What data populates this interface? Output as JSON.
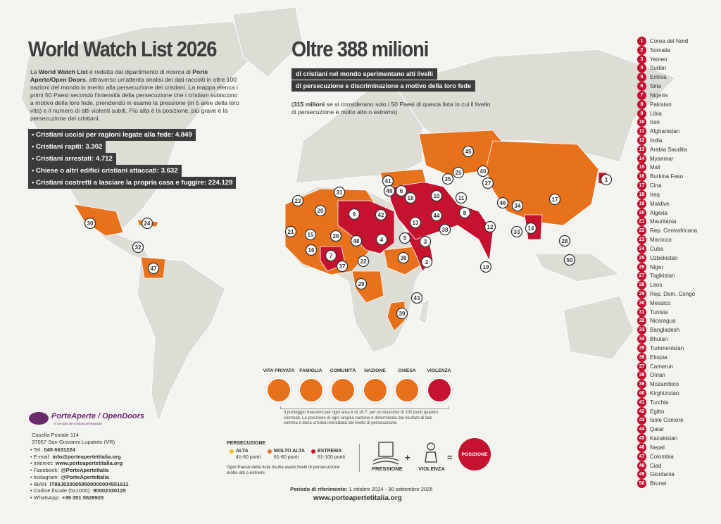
{
  "header": {
    "title": "World Watch List 2026",
    "headline": "Oltre 388 milioni",
    "sub_lines": [
      "di cristiani nel mondo sperimentano alti livelli",
      "di persecuzione e discriminazione a motivo della loro fede"
    ],
    "note": [
      "(",
      "315 milioni",
      " se si considerano solo i 50 Paesi di questa lista in cui il livello di persecuzione è molto alto o estremo)"
    ]
  },
  "intro": [
    "La ",
    "World Watch List",
    " è redatta dal dipartimento di ricerca di ",
    "Porte Aperte/Open Doors",
    ", attraverso un'attenta analisi dei dati raccolti in oltre 100 nazioni del mondo in merito alla persecuzione dei cristiani. La mappa elenca i primi 50 Paesi secondo l'intensità della persecuzione che i cristiani subiscono a motivo della loro fede, prendendo in esame la pressione (in 5 aree della loro vita) e il numero di atti violenti subiti. Più alta è la posizione, più grave è la persecuzione dei cristiani."
  ],
  "stats": [
    {
      "label": "Cristiani uccisi per ragioni legate alla fede:",
      "value": "4.849"
    },
    {
      "label": "Cristiani rapiti:",
      "value": "3.302"
    },
    {
      "label": "Cristiani arrestati:",
      "value": "4.712"
    },
    {
      "label": "Chiese o altri edifici cristiani attaccati:",
      "value": "3.632"
    },
    {
      "label": "Cristiani costretti a lasciare la propria casa e fuggire:",
      "value": "224.129"
    }
  ],
  "ranking": [
    {
      "rank": "1",
      "country": "Corea del Nord"
    },
    {
      "rank": "2",
      "country": "Somalia"
    },
    {
      "rank": "3",
      "country": "Yemen"
    },
    {
      "rank": "4",
      "country": "Sudan"
    },
    {
      "rank": "5",
      "country": "Eritrea"
    },
    {
      "rank": "6",
      "country": "Siria"
    },
    {
      "rank": "7",
      "country": "Nigeria"
    },
    {
      "rank": "8",
      "country": "Pakistan"
    },
    {
      "rank": "9",
      "country": "Libia"
    },
    {
      "rank": "10",
      "country": "Iran"
    },
    {
      "rank": "11",
      "country": "Afghanistan"
    },
    {
      "rank": "12",
      "country": "India"
    },
    {
      "rank": "13",
      "country": "Arabia Saudita"
    },
    {
      "rank": "14",
      "country": "Myanmar"
    },
    {
      "rank": "15",
      "country": "Mali"
    },
    {
      "rank": "16",
      "country": "Burkina Faso"
    },
    {
      "rank": "17",
      "country": "Cina"
    },
    {
      "rank": "18",
      "country": "Iraq"
    },
    {
      "rank": "19",
      "country": "Maldive"
    },
    {
      "rank": "20",
      "country": "Algeria"
    },
    {
      "rank": "21",
      "country": "Mauritania"
    },
    {
      "rank": "22",
      "country": "Rep. Centrafricana"
    },
    {
      "rank": "23",
      "country": "Marocco"
    },
    {
      "rank": "24",
      "country": "Cuba"
    },
    {
      "rank": "25",
      "country": "Uzbekistan"
    },
    {
      "rank": "26",
      "country": "Niger"
    },
    {
      "rank": "27",
      "country": "Tagikistan"
    },
    {
      "rank": "28",
      "country": "Laos"
    },
    {
      "rank": "29",
      "country": "Rep. Dem. Congo"
    },
    {
      "rank": "30",
      "country": "Messico"
    },
    {
      "rank": "31",
      "country": "Tunisia"
    },
    {
      "rank": "32",
      "country": "Nicaragua"
    },
    {
      "rank": "33",
      "country": "Bangladesh"
    },
    {
      "rank": "34",
      "country": "Bhutan"
    },
    {
      "rank": "35",
      "country": "Turkmenistan"
    },
    {
      "rank": "36",
      "country": "Etiopia"
    },
    {
      "rank": "37",
      "country": "Camerun"
    },
    {
      "rank": "38",
      "country": "Oman"
    },
    {
      "rank": "39",
      "country": "Mozambico"
    },
    {
      "rank": "40",
      "country": "Kirghizistan"
    },
    {
      "rank": "41",
      "country": "Turchia"
    },
    {
      "rank": "42",
      "country": "Egitto"
    },
    {
      "rank": "43",
      "country": "Isole Comore"
    },
    {
      "rank": "44",
      "country": "Qatar"
    },
    {
      "rank": "45",
      "country": "Kazakistan"
    },
    {
      "rank": "46",
      "country": "Nepal"
    },
    {
      "rank": "47",
      "country": "Colombia"
    },
    {
      "rank": "48",
      "country": "Ciad"
    },
    {
      "rank": "49",
      "country": "Giordania"
    },
    {
      "rank": "50",
      "country": "Brunei"
    }
  ],
  "areas": [
    "VITA PRIVATA",
    "FAMIGLIA",
    "COMUNITÀ",
    "NAZIONE",
    "CHIESA",
    "VIOLENZA"
  ],
  "areas_note": "Il punteggio massimo per ogni area è di 16,7, per un massimo di 100 punti quando sommati. La posizione di ogni singola nazione è determinata dal risultato di tale somma e dona un'idea immediata del livello di persecuzione.",
  "legend": {
    "title": "PERSECUZIONE",
    "levels": [
      {
        "name": "ALTA",
        "range": "41-60 punti",
        "color": "#f2c21b"
      },
      {
        "name": "MOLTO ALTA",
        "range": "61-80 punti",
        "color": "#e8711c"
      },
      {
        "name": "ESTREMA",
        "range": "81-100 punti",
        "color": "#c4122f"
      }
    ],
    "note": "Ogni Paese della lista risulta avere livelli di persecuzione molto alti o estremi."
  },
  "formula": {
    "pressure": "PRESSIONE",
    "plus": "+",
    "violence": "VIOLENZA",
    "equals": "=",
    "result": "POSIZIONE"
  },
  "footer": {
    "period_label": "Periodo di riferimento:",
    "period": " 1 ottobre 2024 - 30 settembre 2025",
    "website": "www.porteapertetitalia.org"
  },
  "org": {
    "logo": "PorteAperte / OpenDoors",
    "tagline": "Al servizio dei cristiani perseguitati",
    "address": [
      "Casella Postale 114",
      "37057 San Giovanni Lupatoto (VR)"
    ],
    "contacts": [
      {
        "label": "Tel.",
        "value": "045 6631224"
      },
      {
        "label": "E-mail:",
        "value": "info@porteapertetitalia.org"
      },
      {
        "label": "Internet:",
        "value": "www.porteapertetitalia.org"
      },
      {
        "label": "Facebook:",
        "value": "@PorteAperteItalia"
      },
      {
        "label": "Instagram:",
        "value": "@PorteAperteItalia"
      },
      {
        "label": "IBAN:",
        "value": "IT89J0200859500000004551611"
      },
      {
        "label": "Codice fiscale (5x1000):",
        "value": "90002330125"
      },
      {
        "label": "WhatsApp:",
        "value": "+39 351 5528923"
      }
    ]
  }
}
